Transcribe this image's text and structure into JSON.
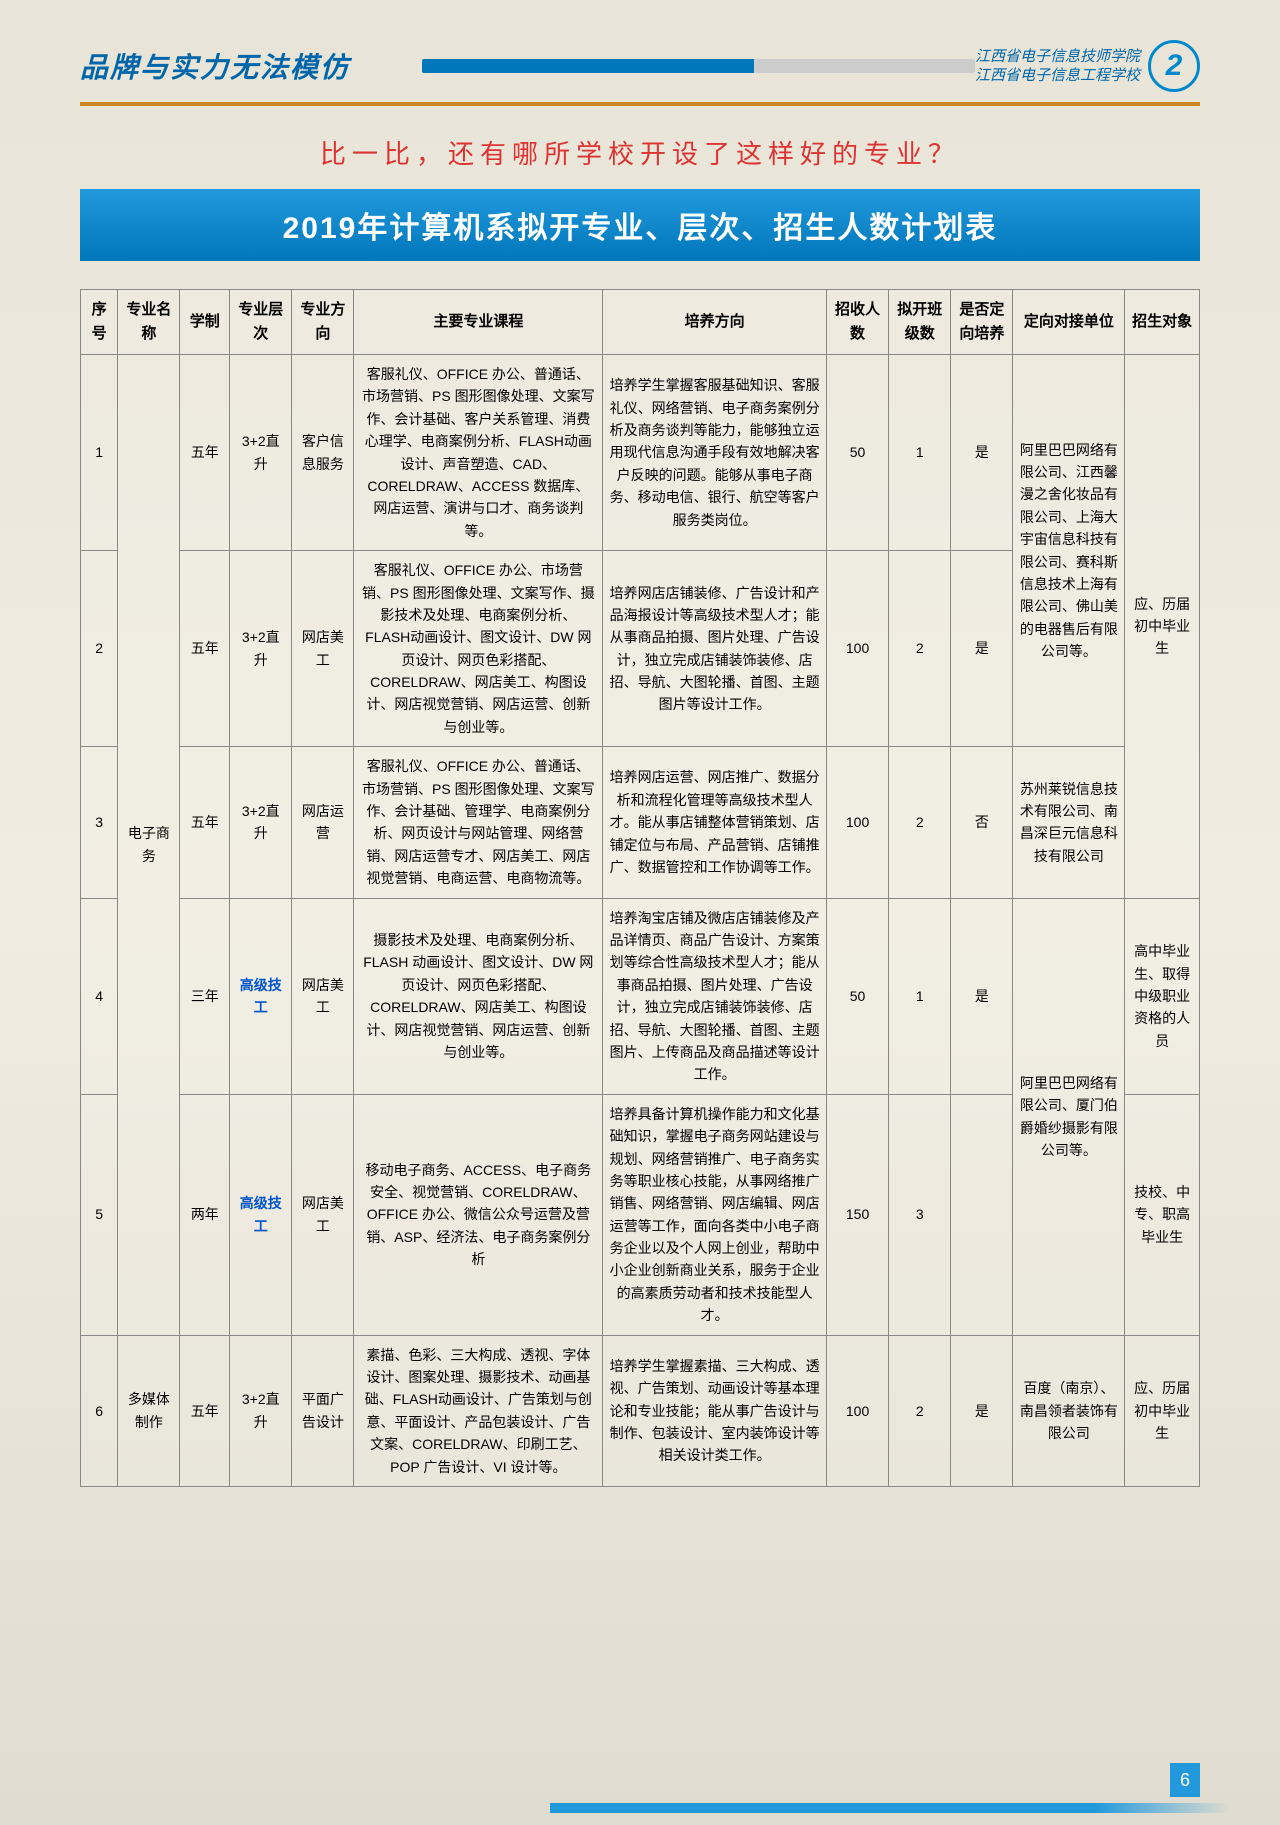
{
  "header": {
    "slogan": "品牌与实力无法模仿",
    "school1": "江西省电子信息技师学院",
    "school2": "江西省电子信息工程学校",
    "logo_num": "2"
  },
  "compare": "比一比，还有哪所学校开设了这样好的专业？",
  "banner": "2019年计算机系拟开专业、层次、招生人数计划表",
  "columns": {
    "c1": "序号",
    "c2": "专业名称",
    "c3": "学制",
    "c4": "专业层次",
    "c5": "专业方向",
    "c6": "主要专业课程",
    "c7": "培养方向",
    "c8": "招收人数",
    "c9": "拟开班级数",
    "c10": "是否定向培养",
    "c11": "定向对接单位",
    "c12": "招生对象"
  },
  "merged": {
    "major_ecom": "电子商务",
    "major_media": "多媒体制作",
    "unit_1_2": "阿里巴巴网络有限公司、江西馨漫之舍化妆品有限公司、上海大宇宙信息科技有限公司、赛科斯信息技术上海有限公司、佛山美的电器售后有限公司等。",
    "unit_4_5": "阿里巴巴网络有限公司、厦门伯爵婚纱摄影有限公司等。",
    "target_1_3": "应、历届初中毕业生"
  },
  "rows": [
    {
      "seq": "1",
      "dur": "五年",
      "level": "3+2直升",
      "dir": "客户信息服务",
      "course": "客服礼仪、OFFICE 办公、普通话、市场营销、PS 图形图像处理、文案写作、会计基础、客户关系管理、消费心理学、电商案例分析、FLASH动画设计、声音塑造、CAD、CORELDRAW、ACCESS 数据库、网店运营、演讲与口才、商务谈判等。",
      "train": "培养学生掌握客服基础知识、客服礼仪、网络营销、电子商务案例分析及商务谈判等能力，能够独立运用现代信息沟通手段有效地解决客户反映的问题。能够从事电子商务、移动电信、银行、航空等客户服务类岗位。",
      "num": "50",
      "class": "1",
      "orient": "是"
    },
    {
      "seq": "2",
      "dur": "五年",
      "level": "3+2直升",
      "dir": "网店美工",
      "course": "客服礼仪、OFFICE 办公、市场营销、PS 图形图像处理、文案写作、摄影技术及处理、电商案例分析、FLASH动画设计、图文设计、DW 网页设计、网页色彩搭配、CORELDRAW、网店美工、构图设计、网店视觉营销、网店运营、创新与创业等。",
      "train": "培养网店店铺装修、广告设计和产品海报设计等高级技术型人才；能从事商品拍摄、图片处理、广告设计，独立完成店铺装饰装修、店招、导航、大图轮播、首图、主题图片等设计工作。",
      "num": "100",
      "class": "2",
      "orient": "是"
    },
    {
      "seq": "3",
      "dur": "五年",
      "level": "3+2直升",
      "dir": "网店运营",
      "course": "客服礼仪、OFFICE 办公、普通话、市场营销、PS 图形图像处理、文案写作、会计基础、管理学、电商案例分析、网页设计与网站管理、网络营销、网店运营专才、网店美工、网店视觉营销、电商运营、电商物流等。",
      "train": "培养网店运营、网店推广、数据分析和流程化管理等高级技术型人才。能从事店铺整体营销策划、店铺定位与布局、产品营销、店铺推广、数据管控和工作协调等工作。",
      "num": "100",
      "class": "2",
      "orient": "否",
      "unit": "苏州莱锐信息技术有限公司、南昌深巨元信息科技有限公司"
    },
    {
      "seq": "4",
      "dur": "三年",
      "level": "高级技工",
      "dir": "网店美工",
      "level_blue": true,
      "course": "摄影技术及处理、电商案例分析、FLASH 动画设计、图文设计、DW 网页设计、网页色彩搭配、CORELDRAW、网店美工、构图设计、网店视觉营销、网店运营、创新与创业等。",
      "train": "培养淘宝店铺及微店店铺装修及产品详情页、商品广告设计、方案策划等综合性高级技术型人才；能从事商品拍摄、图片处理、广告设计，独立完成店铺装饰装修、店招、导航、大图轮播、首图、主题图片、上传商品及商品描述等设计工作。",
      "num": "50",
      "class": "1",
      "orient": "是",
      "target": "高中毕业生、取得中级职业资格的人员"
    },
    {
      "seq": "5",
      "dur": "两年",
      "level": "高级技工",
      "dir": "网店美工",
      "level_blue": true,
      "course": "移动电子商务、ACCESS、电子商务安全、视觉营销、CORELDRAW、OFFICE 办公、微信公众号运营及营销、ASP、经济法、电子商务案例分析",
      "train": "培养具备计算机操作能力和文化基础知识，掌握电子商务网站建设与规划、网络营销推广、电子商务实务等职业核心技能，从事网络推广销售、网络营销、网店编辑、网店运营等工作，面向各类中小电子商务企业以及个人网上创业，帮助中小企业创新商业关系，服务于企业的高素质劳动者和技术技能型人才。",
      "num": "150",
      "class": "3",
      "orient": "",
      "target": "技校、中专、职高毕业生"
    },
    {
      "seq": "6",
      "dur": "五年",
      "level": "3+2直升",
      "dir": "平面广告设计",
      "course": "素描、色彩、三大构成、透视、字体设计、图案处理、摄影技术、动画基础、FLASH动画设计、广告策划与创意、平面设计、产品包装设计、广告文案、CORELDRAW、印刷工艺、POP 广告设计、VI 设计等。",
      "train": "培养学生掌握素描、三大构成、透视、广告策划、动画设计等基本理论和专业技能；能从事广告设计与制作、包装设计、室内装饰设计等相关设计类工作。",
      "num": "100",
      "class": "2",
      "orient": "是",
      "unit": "百度（南京）、南昌领者装饰有限公司",
      "target": "应、历届初中毕业生"
    }
  ],
  "page_number": "6"
}
